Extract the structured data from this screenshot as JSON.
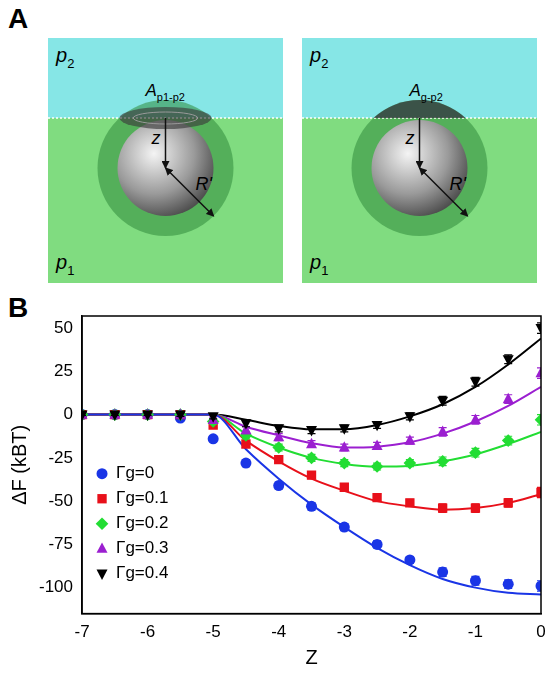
{
  "diagram": {
    "panel": "A",
    "top_phase": {
      "symbol": "p",
      "subscript": "2"
    },
    "bottom_phase": {
      "symbol": "p",
      "subscript": "1"
    },
    "depth_label": "z",
    "radius_label": "R'",
    "cases": [
      {
        "area": {
          "symbol": "A",
          "subscript": "p1-p2"
        }
      },
      {
        "area": {
          "symbol": "A",
          "subscript": "g-p2"
        }
      }
    ]
  },
  "chart_data": {
    "panel": "B",
    "type": "scatter",
    "x_label": "Z",
    "y_label": "ΔF (kBT)",
    "x": [
      -7,
      -6.5,
      -6,
      -5.5,
      -5,
      -4.5,
      -4,
      -3.5,
      -3,
      -2.5,
      -2,
      -1.5,
      -1,
      -0.5,
      0
    ],
    "xlim": [
      -7,
      0
    ],
    "xticks": [
      -7,
      -6,
      -5,
      -4,
      -3,
      -2,
      -1,
      0
    ],
    "ylim": [
      -115,
      57
    ],
    "yticks": [
      -100,
      -75,
      -50,
      -25,
      0,
      25,
      50
    ],
    "grid": false,
    "legend": "left",
    "series": [
      {
        "name": "Γg=0",
        "color": "#1a35e6",
        "marker": "circle",
        "values": [
          0,
          0,
          0,
          -2,
          -14,
          -28,
          -41,
          -53,
          -65,
          -75,
          -84,
          -91,
          -96,
          -98,
          -99
        ],
        "errors": [
          0.5,
          0.5,
          0.5,
          1,
          1.5,
          2,
          2,
          2,
          2,
          2,
          2,
          2.5,
          2.5,
          2.5,
          3
        ],
        "fit": [
          0,
          0,
          0,
          0,
          0,
          -20,
          -37,
          -52,
          -65,
          -77,
          -87,
          -95,
          -100,
          -103,
          -104
        ]
      },
      {
        "name": "Γg=0.1",
        "color": "#e8101a",
        "marker": "square",
        "values": [
          0,
          0,
          0,
          0,
          -6,
          -17,
          -26,
          -35,
          -42,
          -48,
          -51,
          -54,
          -54,
          -51,
          -45
        ],
        "errors": [
          0.5,
          0.5,
          0.5,
          1,
          1.5,
          2,
          2,
          2,
          2,
          2,
          2,
          2.5,
          2.5,
          2.5,
          3
        ],
        "fit": [
          0,
          0,
          0,
          0,
          0,
          -15,
          -27,
          -37,
          -44,
          -50,
          -53,
          -55,
          -54,
          -51,
          -46
        ]
      },
      {
        "name": "Γg=0.2",
        "color": "#22dd33",
        "marker": "diamond",
        "values": [
          0,
          0,
          0,
          0,
          -4,
          -12,
          -19,
          -25,
          -28,
          -30,
          -28,
          -27,
          -22,
          -15,
          -3
        ],
        "errors": [
          0.5,
          0.5,
          0.5,
          1,
          1.5,
          2,
          2,
          2,
          2,
          2,
          2,
          2.5,
          2.5,
          2.5,
          3
        ],
        "fit": [
          0,
          0,
          0,
          0,
          0,
          -11,
          -19,
          -25,
          -28.5,
          -30,
          -29.5,
          -27,
          -23,
          -17,
          -10
        ]
      },
      {
        "name": "Γg=0.3",
        "color": "#9b1fd0",
        "marker": "triangle",
        "values": [
          0,
          0,
          0,
          0,
          -3,
          -9,
          -13,
          -17,
          -19,
          -18,
          -15,
          -10,
          -3,
          9,
          24
        ],
        "errors": [
          0.5,
          0.5,
          0.5,
          1,
          1.5,
          2,
          2,
          2,
          2,
          2,
          2,
          2.5,
          2.5,
          2.5,
          3
        ],
        "fit": [
          0,
          0,
          0,
          0,
          0,
          -7,
          -12,
          -16.5,
          -19,
          -18.5,
          -16,
          -11,
          -4,
          5,
          16
        ]
      },
      {
        "name": "Γg=0.4",
        "color": "#000000",
        "marker": "triangle_down",
        "values": [
          0,
          0,
          0,
          0,
          -1,
          -5,
          -8,
          -9,
          -8,
          -6,
          -1,
          8,
          19,
          32,
          50
        ],
        "errors": [
          0.5,
          0.5,
          0.5,
          1,
          1.5,
          2,
          2,
          2,
          2,
          2,
          2,
          2.5,
          2.5,
          2.5,
          3
        ],
        "fit": [
          0,
          0,
          0,
          0,
          0,
          -3,
          -6.5,
          -8.5,
          -8.5,
          -6,
          -1,
          6,
          16,
          29,
          44
        ]
      }
    ]
  }
}
